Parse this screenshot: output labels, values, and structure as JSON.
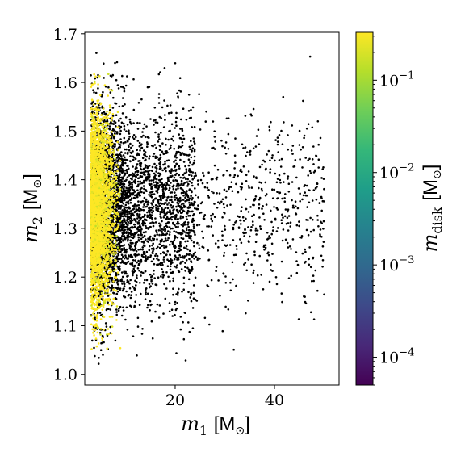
{
  "chart_data": {
    "type": "scatter",
    "x_axis": {
      "label_var": "m",
      "label_sub": "1",
      "label_unit": "[M",
      "label_unit_end": "]",
      "lim": [
        1.8,
        53.0
      ],
      "ticks": [
        20,
        40
      ],
      "tick_labels": [
        "20",
        "40"
      ]
    },
    "y_axis": {
      "label_var": "m",
      "label_sub": "2",
      "label_unit": "[M",
      "label_unit_end": "]",
      "lim": [
        0.978,
        1.703
      ],
      "ticks": [
        1.0,
        1.1,
        1.2,
        1.3,
        1.4,
        1.5,
        1.6,
        1.7
      ],
      "tick_labels": [
        "1.0",
        "1.1",
        "1.2",
        "1.3",
        "1.4",
        "1.5",
        "1.6",
        "1.7"
      ]
    },
    "colorbar": {
      "label_var": "m",
      "label_sub": "disk",
      "label_unit": "[M",
      "label_unit_end": "]",
      "scale": "log",
      "lim": [
        5e-05,
        0.33
      ],
      "colormap": "viridis",
      "ticks": [
        0.0001,
        0.001,
        0.01,
        0.1
      ],
      "tick_bases": [
        "10",
        "10",
        "10",
        "10"
      ],
      "tick_exponents": [
        "−4",
        "−3",
        "−2",
        "−1"
      ]
    },
    "series": [
      {
        "marker_color": "#000000",
        "point_count": 4500,
        "x_range": [
          3,
          50
        ],
        "y_center": 1.34,
        "y_spread": 0.09,
        "x_density_peak": 8
      },
      {
        "marker_color": "viridis",
        "point_count": 3000,
        "x_range": [
          3,
          9
        ],
        "y_center": 1.34,
        "y_spread": 0.1,
        "c_range": [
          0.001,
          0.33
        ]
      }
    ],
    "viridis_stops": [
      "#440154",
      "#482878",
      "#3e4989",
      "#31688e",
      "#26828e",
      "#1f9e89",
      "#35b779",
      "#6ece58",
      "#b5de2b",
      "#fde725"
    ]
  }
}
